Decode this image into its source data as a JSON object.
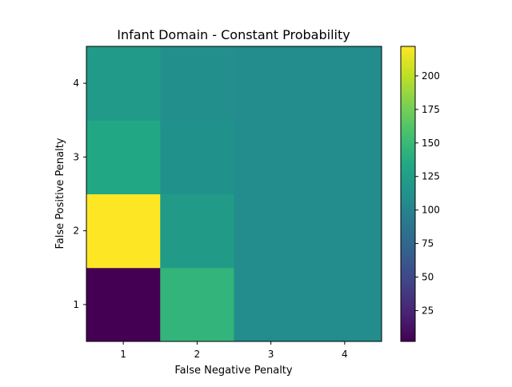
{
  "chart_data": {
    "type": "heatmap",
    "title": "Infant Domain - Constant Probability",
    "xlabel": "False Negative Penalty",
    "ylabel": "False Positive Penalty",
    "x_categories": [
      "1",
      "2",
      "3",
      "4"
    ],
    "y_categories": [
      "1",
      "2",
      "3",
      "4"
    ],
    "values": [
      [
        2,
        145,
        108,
        108
      ],
      [
        222,
        122,
        108,
        108
      ],
      [
        133,
        112,
        108,
        108
      ],
      [
        121,
        110,
        108,
        108
      ]
    ],
    "colorbar": {
      "min": 2,
      "max": 222,
      "ticks": [
        25,
        50,
        75,
        100,
        125,
        150,
        175,
        200
      ]
    },
    "colormap": "viridis"
  }
}
